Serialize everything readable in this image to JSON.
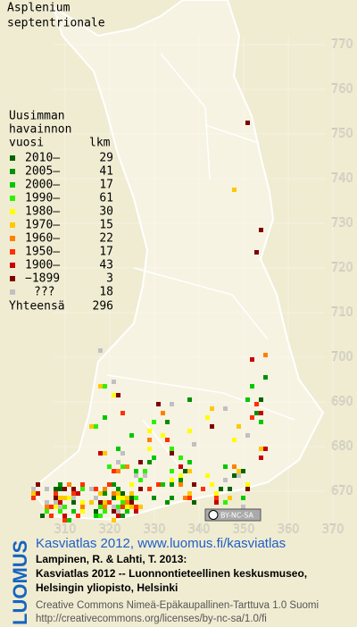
{
  "title": [
    "Asplenium",
    "septentrionale"
  ],
  "legend": {
    "heading": [
      "Uusimman",
      "havainnon"
    ],
    "col_year": "vuosi",
    "col_count": "lkm",
    "items": [
      {
        "label": "2010–",
        "count": 29,
        "color": "#006400"
      },
      {
        "label": "2005–",
        "count": 41,
        "color": "#009000"
      },
      {
        "label": "2000–",
        "count": 17,
        "color": "#00c800"
      },
      {
        "label": "1990–",
        "count": 61,
        "color": "#30f000"
      },
      {
        "label": "1980–",
        "count": 30,
        "color": "#ffff00"
      },
      {
        "label": "1970–",
        "count": 15,
        "color": "#ffc800"
      },
      {
        "label": "1960–",
        "count": 22,
        "color": "#ff8000"
      },
      {
        "label": "1950–",
        "count": 17,
        "color": "#ff3000"
      },
      {
        "label": "1900–",
        "count": 43,
        "color": "#c80000"
      },
      {
        "label": "−1899",
        "count": 3,
        "color": "#800000"
      },
      {
        "label": "???",
        "count": 18,
        "color": "#c0c0c0"
      }
    ],
    "total_label": "Yhteensä",
    "total": 296
  },
  "map": {
    "xticks": [
      310,
      320,
      330,
      340,
      350,
      360,
      370
    ],
    "yticks": [
      670,
      680,
      690,
      700,
      710,
      720,
      730,
      740,
      750,
      760,
      770
    ],
    "badge": "BY-NC-SA"
  },
  "footer": {
    "logo": "LUOMUS",
    "link": "Kasviatlas 2012, www.luomus.fi/kasviatlas",
    "citation": [
      "Lampinen, R. & Lahti, T. 2013:",
      "Kasviatlas 2012 -- Luonnontieteellinen keskusmuseo,",
      "Helsingin yliopisto, Helsinki"
    ],
    "license": [
      "Creative Commons Nimeä-Epäkaupallinen-Tarttuva 1.0 Suomi",
      "http://creativecommons.org/licenses/by-nc-sa/1.0/fi"
    ]
  }
}
